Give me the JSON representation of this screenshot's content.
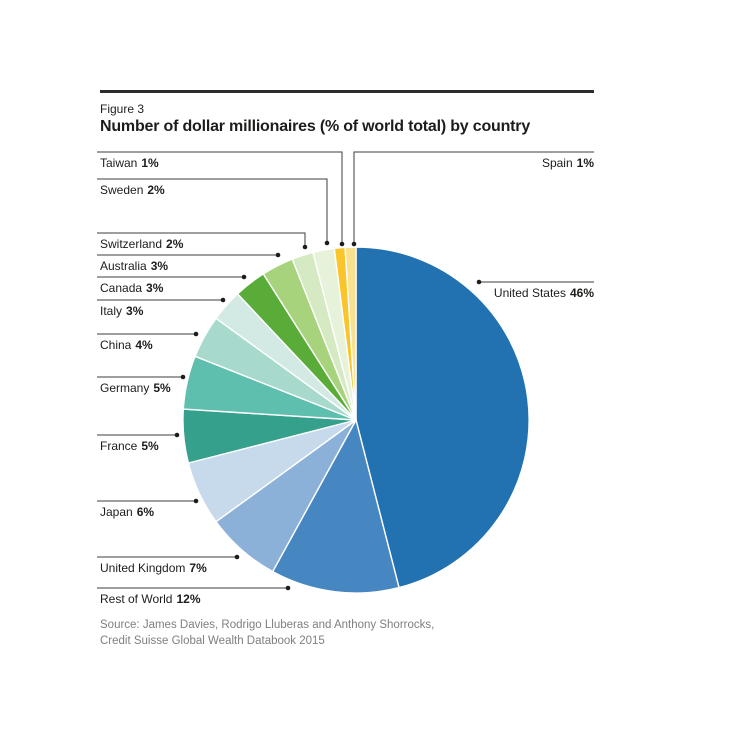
{
  "figure_label": "Figure 3",
  "title": "Number of dollar millionaires (% of world total) by country",
  "source": {
    "line1": "Source: James Davies, Rodrigo Lluberas and Anthony Shorrocks,",
    "line2": "Credit Suisse Global Wealth Databook 2015"
  },
  "chart_data": {
    "type": "pie",
    "title": "Number of dollar millionaires (% of world total) by country",
    "unit": "% of world total",
    "start_angle_deg": 0,
    "direction": "clockwise",
    "legend_position": "leader-line labels around pie",
    "segments": [
      {
        "label": "United States",
        "value": 46,
        "color": "#2272b2",
        "label_side": "right"
      },
      {
        "label": "Rest of World",
        "value": 12,
        "color": "#4787c1",
        "label_side": "left"
      },
      {
        "label": "United Kingdom",
        "value": 7,
        "color": "#8cb1d8",
        "label_side": "left"
      },
      {
        "label": "Japan",
        "value": 6,
        "color": "#c7daec",
        "label_side": "left"
      },
      {
        "label": "France",
        "value": 5,
        "color": "#35a18c",
        "label_side": "left"
      },
      {
        "label": "Germany",
        "value": 5,
        "color": "#5fbfae",
        "label_side": "left"
      },
      {
        "label": "China",
        "value": 4,
        "color": "#a7dacc",
        "label_side": "left"
      },
      {
        "label": "Italy",
        "value": 3,
        "color": "#d2eae3",
        "label_side": "left"
      },
      {
        "label": "Canada",
        "value": 3,
        "color": "#58ac37",
        "label_side": "left"
      },
      {
        "label": "Australia",
        "value": 3,
        "color": "#a8d37d",
        "label_side": "left"
      },
      {
        "label": "Switzerland",
        "value": 2,
        "color": "#d5e9c2",
        "label_side": "left"
      },
      {
        "label": "Sweden",
        "value": 2,
        "color": "#e7f2da",
        "label_side": "left"
      },
      {
        "label": "Taiwan",
        "value": 1,
        "color": "#f9c52b",
        "label_side": "left"
      },
      {
        "label": "Spain",
        "value": 1,
        "color": "#fce18c",
        "label_side": "right"
      }
    ],
    "line_color": "#3c3c3c",
    "text_color": "#1d1d1b",
    "source_text_color": "#7f7f7f"
  }
}
